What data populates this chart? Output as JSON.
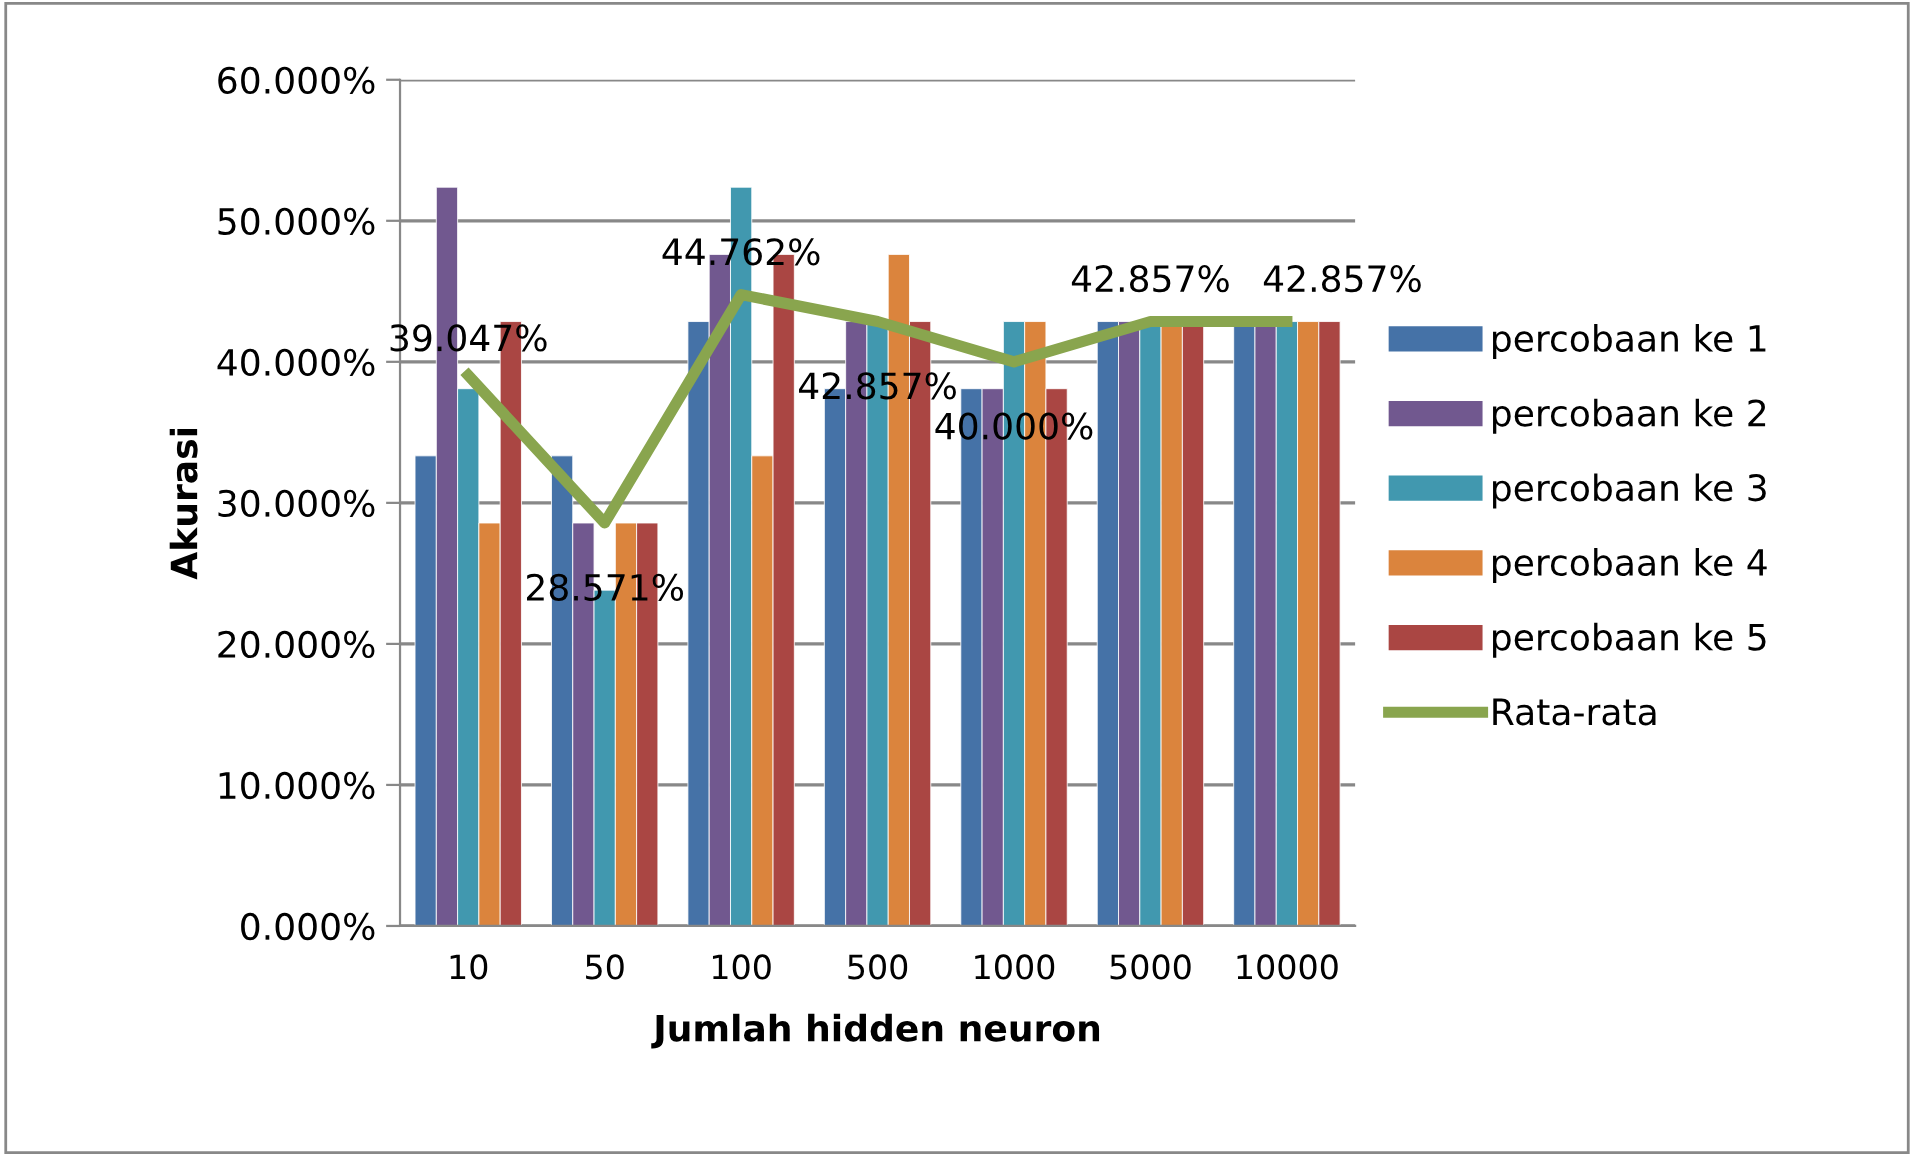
{
  "chart_data": {
    "type": "bar",
    "xlabel": "Jumlah hidden neuron",
    "ylabel": "Akurasi",
    "categories": [
      "10",
      "50",
      "100",
      "500",
      "1000",
      "5000",
      "10000"
    ],
    "ylim": [
      0,
      60
    ],
    "yticks": [
      {
        "value": 0,
        "label": "0.000%"
      },
      {
        "value": 10,
        "label": "10.000%"
      },
      {
        "value": 20,
        "label": "20.000%"
      },
      {
        "value": 30,
        "label": "30.000%"
      },
      {
        "value": 40,
        "label": "40.000%"
      },
      {
        "value": 50,
        "label": "50.000%"
      },
      {
        "value": 60,
        "label": "60.000%"
      }
    ],
    "grid": "y",
    "legend": "right",
    "series": [
      {
        "name": "percobaan ke 1",
        "color": "#4572a7",
        "values": [
          33.333,
          33.333,
          42.857,
          38.095,
          38.095,
          42.857,
          42.857
        ]
      },
      {
        "name": "percobaan ke 2",
        "color": "#71588f",
        "values": [
          52.381,
          28.571,
          47.619,
          42.857,
          38.095,
          42.857,
          42.857
        ]
      },
      {
        "name": "percobaan ke 3",
        "color": "#4198af",
        "values": [
          38.095,
          23.81,
          52.381,
          42.857,
          42.857,
          42.857,
          42.857
        ]
      },
      {
        "name": "percobaan ke 4",
        "color": "#db843d",
        "values": [
          28.571,
          28.571,
          33.333,
          47.619,
          42.857,
          42.857,
          42.857
        ]
      },
      {
        "name": "percobaan ke 5",
        "color": "#aa4643",
        "values": [
          42.857,
          28.571,
          47.619,
          42.857,
          38.095,
          42.857,
          42.857
        ]
      },
      {
        "name": "Rata-rata",
        "type": "line",
        "color": "#89a54e",
        "marker": "none",
        "line_style": "solid",
        "values": [
          39.047,
          28.571,
          44.762,
          42.857,
          40.0,
          42.857,
          42.857
        ],
        "value_labels": [
          "39.047%",
          "28.571%",
          "44.762%",
          "42.857%",
          "40.000%",
          "42.857%",
          "42.857%"
        ]
      }
    ]
  }
}
